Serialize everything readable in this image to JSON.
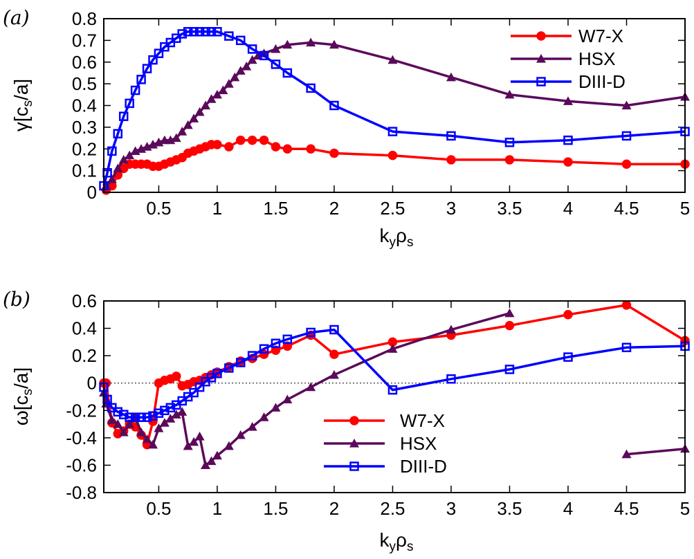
{
  "chart_data": [
    {
      "type": "line",
      "panel_label": "(a)",
      "ylabel": "γ[c_s/a]",
      "xlabel": "k_yρ_s",
      "xlim": [
        0.03,
        5.0
      ],
      "ylim": [
        0,
        0.8
      ],
      "xticks": [
        "0.5",
        "1",
        "1.5",
        "2",
        "2.5",
        "3",
        "3.5",
        "4",
        "4.5",
        "5"
      ],
      "yticks": [
        "0",
        "0.1",
        "0.2",
        "0.3",
        "0.4",
        "0.5",
        "0.6",
        "0.7",
        "0.8"
      ],
      "legend_position": "top-right",
      "series": [
        {
          "name": "W7-X",
          "color": "#ff0000",
          "marker": "circle",
          "x": [
            0.05,
            0.1,
            0.15,
            0.2,
            0.25,
            0.3,
            0.35,
            0.4,
            0.45,
            0.5,
            0.55,
            0.6,
            0.65,
            0.7,
            0.75,
            0.8,
            0.85,
            0.9,
            0.95,
            1.0,
            1.1,
            1.2,
            1.3,
            1.4,
            1.5,
            1.6,
            1.8,
            2.0,
            2.5,
            3.0,
            3.5,
            4.0,
            4.5,
            5.0
          ],
          "y": [
            0.01,
            0.03,
            0.08,
            0.11,
            0.13,
            0.13,
            0.13,
            0.13,
            0.12,
            0.12,
            0.13,
            0.14,
            0.15,
            0.16,
            0.18,
            0.19,
            0.2,
            0.21,
            0.22,
            0.22,
            0.21,
            0.24,
            0.24,
            0.24,
            0.21,
            0.2,
            0.2,
            0.18,
            0.17,
            0.15,
            0.15,
            0.14,
            0.13,
            0.13
          ]
        },
        {
          "name": "HSX",
          "color": "#5b0a5b",
          "marker": "triangle",
          "x": [
            0.05,
            0.1,
            0.15,
            0.2,
            0.25,
            0.3,
            0.35,
            0.4,
            0.45,
            0.5,
            0.55,
            0.6,
            0.65,
            0.7,
            0.75,
            0.8,
            0.85,
            0.9,
            0.95,
            1.0,
            1.05,
            1.1,
            1.15,
            1.2,
            1.25,
            1.3,
            1.35,
            1.4,
            1.5,
            1.6,
            1.8,
            2.0,
            2.5,
            3.0,
            3.5,
            4.0,
            4.5,
            5.0
          ],
          "y": [
            0.03,
            0.06,
            0.11,
            0.15,
            0.17,
            0.19,
            0.2,
            0.21,
            0.22,
            0.23,
            0.24,
            0.24,
            0.25,
            0.28,
            0.31,
            0.34,
            0.37,
            0.4,
            0.43,
            0.45,
            0.47,
            0.5,
            0.53,
            0.56,
            0.58,
            0.61,
            0.63,
            0.64,
            0.66,
            0.68,
            0.69,
            0.68,
            0.61,
            0.53,
            0.45,
            0.42,
            0.4,
            0.44
          ]
        },
        {
          "name": "DIII-D",
          "color": "#0000ff",
          "marker": "square",
          "x": [
            0.03,
            0.06,
            0.1,
            0.15,
            0.2,
            0.25,
            0.3,
            0.35,
            0.4,
            0.45,
            0.5,
            0.55,
            0.6,
            0.65,
            0.7,
            0.75,
            0.8,
            0.85,
            0.9,
            0.95,
            1.0,
            1.1,
            1.2,
            1.3,
            1.4,
            1.5,
            1.6,
            1.8,
            2.0,
            2.5,
            3.0,
            3.5,
            4.0,
            4.5,
            5.0
          ],
          "y": [
            0.03,
            0.09,
            0.19,
            0.27,
            0.35,
            0.41,
            0.47,
            0.52,
            0.57,
            0.61,
            0.64,
            0.67,
            0.69,
            0.71,
            0.73,
            0.74,
            0.74,
            0.74,
            0.74,
            0.74,
            0.74,
            0.72,
            0.7,
            0.66,
            0.63,
            0.59,
            0.55,
            0.48,
            0.4,
            0.28,
            0.26,
            0.23,
            0.24,
            0.26,
            0.28
          ]
        }
      ]
    },
    {
      "type": "line",
      "panel_label": "(b)",
      "ylabel": "ω[c_s/a]",
      "xlabel": "k_yρ_s",
      "xlim": [
        0.03,
        5.0
      ],
      "ylim": [
        -0.8,
        0.6
      ],
      "xticks": [
        "0.5",
        "1",
        "1.5",
        "2",
        "2.5",
        "3",
        "3.5",
        "4",
        "4.5",
        "5"
      ],
      "yticks": [
        "-0.8",
        "-0.6",
        "-0.4",
        "-0.2",
        "0",
        "0.2",
        "0.4",
        "0.6"
      ],
      "zero_line": true,
      "legend_position": "bottom-center",
      "series": [
        {
          "name": "W7-X",
          "color": "#ff0000",
          "marker": "circle",
          "segments": [
            {
              "x": [
                0.03,
                0.05,
                0.1,
                0.15,
                0.2,
                0.25,
                0.3,
                0.35,
                0.4,
                0.45,
                0.5,
                0.55,
                0.6,
                0.65,
                0.7,
                0.75,
                0.8,
                0.85,
                0.9,
                0.95,
                1.0,
                1.1,
                1.2,
                1.3,
                1.4,
                1.5,
                1.6,
                1.8,
                2.0,
                2.5,
                3.0,
                3.5,
                4.0,
                4.5,
                5.0
              ],
              "y": [
                0.0,
                0.0,
                -0.29,
                -0.37,
                -0.35,
                -0.3,
                -0.32,
                -0.38,
                -0.45,
                -0.28,
                0.0,
                0.02,
                0.03,
                0.05,
                -0.02,
                -0.01,
                0.01,
                0.02,
                0.04,
                0.06,
                0.08,
                0.12,
                0.16,
                0.18,
                0.21,
                0.24,
                0.27,
                0.35,
                0.21,
                0.3,
                0.35,
                0.42,
                0.5,
                0.57,
                0.31
              ]
            }
          ]
        },
        {
          "name": "HSX",
          "color": "#5b0a5b",
          "marker": "triangle",
          "segments": [
            {
              "x": [
                0.03,
                0.05,
                0.1,
                0.15,
                0.2,
                0.25,
                0.3,
                0.35,
                0.4,
                0.45,
                0.5,
                0.55,
                0.6,
                0.65,
                0.7,
                0.75,
                0.8,
                0.85,
                0.9,
                0.95,
                1.0,
                1.1,
                1.2,
                1.3,
                1.4,
                1.5,
                1.6,
                1.8,
                2.0,
                2.5,
                3.0,
                3.5
              ],
              "y": [
                -0.07,
                -0.15,
                -0.27,
                -0.3,
                -0.36,
                -0.3,
                -0.25,
                -0.36,
                -0.41,
                -0.45,
                -0.33,
                -0.29,
                -0.26,
                -0.23,
                -0.21,
                -0.46,
                -0.43,
                -0.39,
                -0.6,
                -0.57,
                -0.53,
                -0.46,
                -0.38,
                -0.32,
                -0.25,
                -0.18,
                -0.12,
                -0.03,
                0.06,
                0.25,
                0.39,
                0.51
              ]
            },
            {
              "x": [
                4.5,
                5.0
              ],
              "y": [
                -0.52,
                -0.48
              ]
            }
          ]
        },
        {
          "name": "DIII-D",
          "color": "#0000ff",
          "marker": "square",
          "segments": [
            {
              "x": [
                0.03,
                0.06,
                0.1,
                0.15,
                0.2,
                0.25,
                0.3,
                0.35,
                0.4,
                0.45,
                0.5,
                0.55,
                0.6,
                0.65,
                0.7,
                0.75,
                0.8,
                0.85,
                0.9,
                0.95,
                1.0,
                1.1,
                1.2,
                1.3,
                1.4,
                1.5,
                1.6,
                1.8,
                2.0,
                2.5,
                3.0,
                3.5,
                4.0,
                4.5,
                5.0
              ],
              "y": [
                -0.03,
                -0.12,
                -0.18,
                -0.21,
                -0.23,
                -0.25,
                -0.25,
                -0.25,
                -0.25,
                -0.24,
                -0.22,
                -0.2,
                -0.18,
                -0.16,
                -0.13,
                -0.1,
                -0.07,
                -0.03,
                0.01,
                0.04,
                0.07,
                0.11,
                0.15,
                0.2,
                0.25,
                0.29,
                0.32,
                0.37,
                0.39,
                -0.05,
                0.03,
                0.1,
                0.19,
                0.26,
                0.27
              ]
            }
          ]
        }
      ]
    }
  ]
}
